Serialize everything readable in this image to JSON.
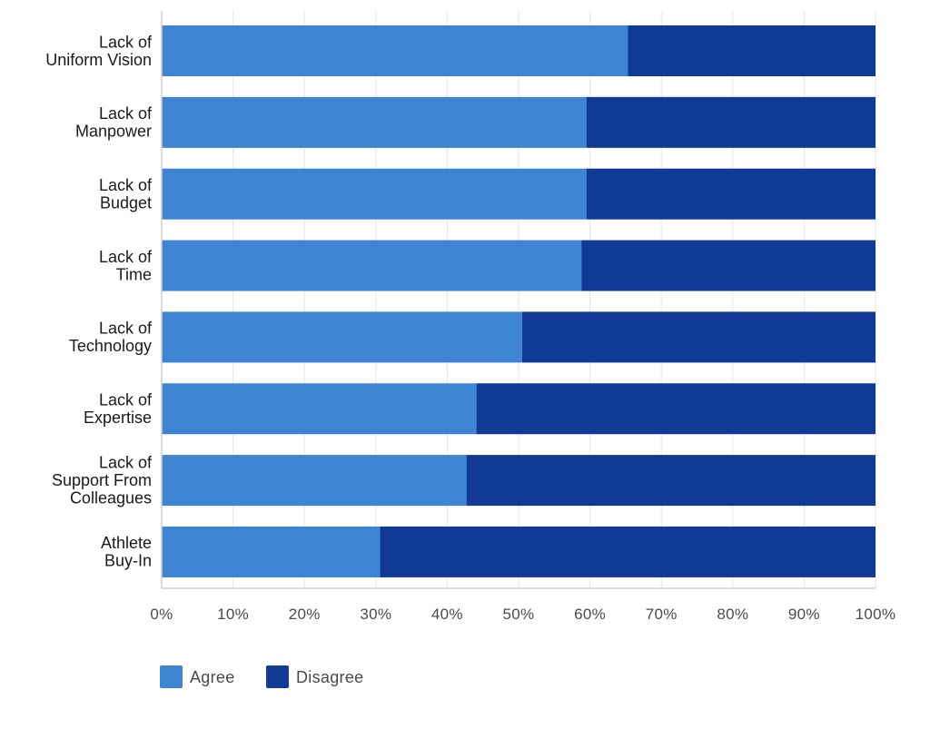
{
  "chart_data": {
    "type": "bar",
    "orientation": "horizontal",
    "stacked": true,
    "categories": [
      [
        "Lack of",
        "Uniform Vision"
      ],
      [
        "Lack of",
        "Manpower"
      ],
      [
        "Lack of",
        "Budget"
      ],
      [
        "Lack of",
        "Time"
      ],
      [
        "Lack of",
        "Technology"
      ],
      [
        "Lack of",
        "Expertise"
      ],
      [
        "Lack of",
        "Support From",
        "Colleagues"
      ],
      [
        "Athlete",
        "Buy-In"
      ]
    ],
    "series": [
      {
        "name": "Agree",
        "color": "#3d84d2",
        "values": [
          65.3,
          59.5,
          59.5,
          58.8,
          50.5,
          44.1,
          42.7,
          30.6
        ]
      },
      {
        "name": "Disagree",
        "color": "#113a96",
        "values": [
          34.7,
          40.5,
          40.5,
          41.2,
          49.5,
          55.9,
          57.3,
          69.4
        ]
      }
    ],
    "x_ticks": [
      "0%",
      "10%",
      "20%",
      "30%",
      "40%",
      "50%",
      "60%",
      "70%",
      "80%",
      "90%",
      "100%"
    ],
    "xlim": [
      0,
      100
    ],
    "grid": true,
    "legend_position": "bottom-left",
    "title": "",
    "xlabel": "",
    "ylabel": ""
  }
}
